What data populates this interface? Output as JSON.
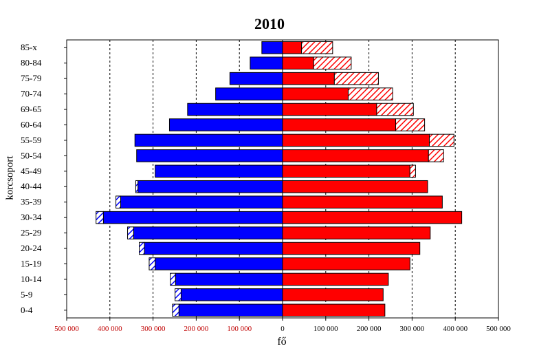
{
  "chart_data": {
    "type": "bar",
    "orientation": "horizontal",
    "subtype": "population-pyramid",
    "title": "2010",
    "xlabel": "fő",
    "ylabel": "korcsoport",
    "categories": [
      "0-4",
      "5-9",
      "10-14",
      "15-19",
      "20-24",
      "25-29",
      "30-34",
      "35-39",
      "40-44",
      "45-49",
      "50-54",
      "55-59",
      "60-64",
      "65-69",
      "70-74",
      "75-79",
      "80-84",
      "85-x"
    ],
    "category_labels_shown": [
      "0-4",
      "5-9",
      "10-14",
      "15-19",
      "20-24",
      "25-29",
      "30-34",
      "35-39",
      "40-44",
      "45-49",
      "50-54",
      "55-59",
      "60-64",
      "69-65",
      "70-74",
      "75-79",
      "80-84",
      "85-x"
    ],
    "xlim": [
      -500000,
      500000
    ],
    "xticks": [
      -500000,
      -400000,
      -300000,
      -200000,
      -100000,
      0,
      100000,
      200000,
      300000,
      400000,
      500000
    ],
    "xtick_labels": [
      "500 000",
      "400 000",
      "300 000",
      "200 000",
      "100 000",
      "0",
      "100 000",
      "200 000",
      "300 000",
      "400 000",
      "500 000"
    ],
    "grid": "vertical-dashed",
    "series": [
      {
        "side": "left",
        "color": "#0000ff",
        "values": [
          240000,
          235000,
          248000,
          295000,
          320000,
          345000,
          415000,
          375000,
          335000,
          295000,
          338000,
          342000,
          262000,
          220000,
          155000,
          122000,
          75000,
          48000
        ]
      },
      {
        "side": "left",
        "hatched": true,
        "color": "#0000ff",
        "values": [
          15000,
          14000,
          12000,
          14000,
          12000,
          14000,
          17000,
          11000,
          5000,
          0,
          0,
          0,
          0,
          0,
          0,
          0,
          0,
          0
        ]
      },
      {
        "side": "right",
        "color": "#ff0000",
        "values": [
          237000,
          233000,
          245000,
          295000,
          318000,
          342000,
          415000,
          370000,
          336000,
          295000,
          338000,
          340000,
          262000,
          218000,
          152000,
          120000,
          72000,
          44000
        ]
      },
      {
        "side": "right",
        "hatched": true,
        "color": "#ff0000",
        "values": [
          0,
          0,
          0,
          0,
          0,
          0,
          0,
          0,
          0,
          13000,
          35000,
          57000,
          67000,
          85000,
          103000,
          102000,
          87000,
          72000
        ]
      }
    ]
  }
}
